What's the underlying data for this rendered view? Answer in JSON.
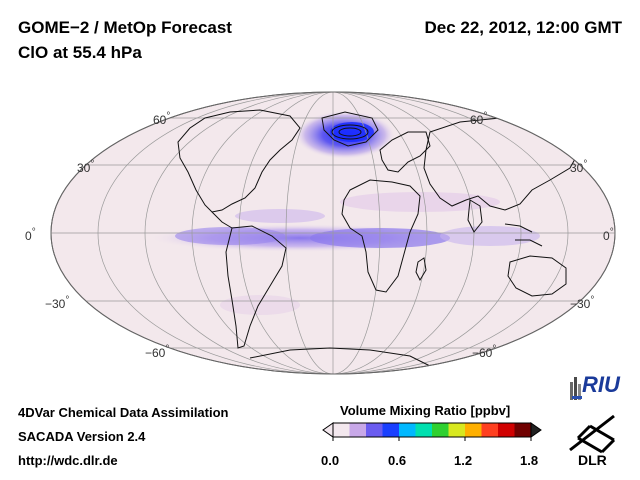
{
  "header": {
    "title": "GOME−2 / MetOp Forecast",
    "subtitle": "ClO at 55.4 hPa",
    "datetime": "Dec 22, 2012, 12:00 GMT"
  },
  "map": {
    "projection": "Mollweide",
    "lat_labels": {
      "n60": "60",
      "n30": "30",
      "eq": "0",
      "s30": "−30",
      "s60": "−60"
    },
    "degree_symbol": "°"
  },
  "footer": {
    "line1": "4DVar Chemical Data Assimilation",
    "line2": "SACADA Version 2.4",
    "line3": "http://wdc.dlr.de"
  },
  "colorbar": {
    "title": "Volume Mixing Ratio [ppbv]",
    "ticks": [
      "0.0",
      "0.6",
      "1.2",
      "1.8"
    ],
    "min": 0.0,
    "max": 1.8,
    "colors": [
      "#f3e8ee",
      "#c8a8e8",
      "#6b5cf0",
      "#1a40ff",
      "#00b8ff",
      "#00e0b0",
      "#30d030",
      "#d8e820",
      "#ffb000",
      "#ff4020",
      "#d00000",
      "#700000"
    ]
  },
  "logos": {
    "riu": "RIU",
    "dlr": "DLR"
  }
}
